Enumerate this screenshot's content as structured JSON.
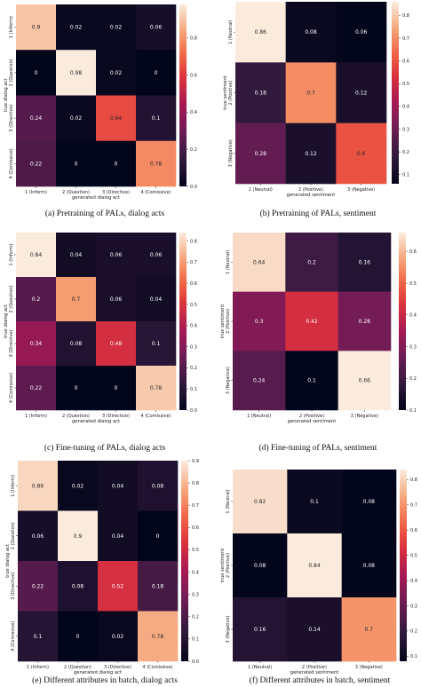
{
  "chart_data": [
    {
      "type": "heatmap",
      "caption": "(a) Pretraining of PALs, dialog acts",
      "xlabel": "generated dialog act",
      "ylabel": "true dialog act",
      "x_categories": [
        "1 (Inform)",
        "2 (Question)",
        "3 (Directive)",
        "4 (Comissive)"
      ],
      "y_categories": [
        "1 (Inform)",
        "2 (Question)",
        "3 (Directive)",
        "4 (Comissive)"
      ],
      "values": [
        [
          0.9,
          0.02,
          0.02,
          0.06
        ],
        [
          0,
          0.98,
          0.02,
          0
        ],
        [
          0.24,
          0.02,
          0.64,
          0.1
        ],
        [
          0.22,
          0,
          0,
          0.78
        ]
      ],
      "colorbar_ticks": [
        "0.0",
        "0.2",
        "0.4",
        "0.6",
        "0.8"
      ],
      "vmin": 0,
      "vmax": 0.98
    },
    {
      "type": "heatmap",
      "caption": "(b) Pretraining of PALs, sentiment",
      "xlabel": "generated sentiment",
      "ylabel": "true sentiment",
      "x_categories": [
        "1 (Neutral)",
        "2 (Positive)",
        "3 (Negative)"
      ],
      "y_categories": [
        "1 (Neutral)",
        "2 (Positive)",
        "3 (Negative)"
      ],
      "values": [
        [
          0.86,
          0.08,
          0.06
        ],
        [
          0.18,
          0.7,
          0.12
        ],
        [
          0.28,
          0.12,
          0.6
        ]
      ],
      "colorbar_ticks": [
        "0.1",
        "0.2",
        "0.3",
        "0.4",
        "0.5",
        "0.6",
        "0.7",
        "0.8"
      ],
      "vmin": 0.06,
      "vmax": 0.86
    },
    {
      "type": "heatmap",
      "caption": "(c) Fine-tuning of PALs, dialog acts",
      "xlabel": "generated dialog act",
      "ylabel": "true dialog act",
      "x_categories": [
        "1 (Inform)",
        "2 (Question)",
        "3 (Directive)",
        "4 (Comissive)"
      ],
      "y_categories": [
        "1 (Inform)",
        "2 (Question)",
        "3 (Directive)",
        "4 (Comissive)"
      ],
      "values": [
        [
          0.84,
          0.04,
          0.06,
          0.06
        ],
        [
          0.2,
          0.7,
          0.06,
          0.04
        ],
        [
          0.34,
          0.08,
          0.48,
          0.1
        ],
        [
          0.22,
          0,
          0,
          0.78
        ]
      ],
      "colorbar_ticks": [
        "0.0",
        "0.1",
        "0.2",
        "0.3",
        "0.4",
        "0.5",
        "0.6",
        "0.7",
        "0.8"
      ],
      "vmin": 0,
      "vmax": 0.84
    },
    {
      "type": "heatmap",
      "caption": "(d) Fine-tuning of PALs, sentiment",
      "xlabel": "generated sentiment",
      "ylabel": "true sentiment",
      "x_categories": [
        "1 (Neutral)",
        "2 (Positive)",
        "3 (Negative)"
      ],
      "y_categories": [
        "1 (Neutral)",
        "2 (Positive)",
        "3 (Negative)"
      ],
      "values": [
        [
          0.64,
          0.2,
          0.16
        ],
        [
          0.3,
          0.42,
          0.28
        ],
        [
          0.24,
          0.1,
          0.66
        ]
      ],
      "colorbar_ticks": [
        "0.1",
        "0.2",
        "0.3",
        "0.4",
        "0.5",
        "0.6"
      ],
      "vmin": 0.1,
      "vmax": 0.66
    },
    {
      "type": "heatmap",
      "caption": "(e) Different attributes in batch, dialog acts",
      "xlabel": "generated dialog act",
      "ylabel": "true dialog act",
      "x_categories": [
        "1 (Inform)",
        "2 (Question)",
        "3 (Directive)",
        "4 (Comissive)"
      ],
      "y_categories": [
        "1 (Inform)",
        "2 (Question)",
        "3 (Directive)",
        "4 (Comissive)"
      ],
      "values": [
        [
          0.86,
          0.02,
          0.04,
          0.08
        ],
        [
          0.06,
          0.9,
          0.04,
          0
        ],
        [
          0.22,
          0.08,
          0.52,
          0.18
        ],
        [
          0.1,
          0,
          0.02,
          0.78
        ]
      ],
      "colorbar_ticks": [
        "0.0",
        "0.1",
        "0.2",
        "0.3",
        "0.4",
        "0.5",
        "0.6",
        "0.7",
        "0.8",
        "0.9"
      ],
      "vmin": 0,
      "vmax": 0.9
    },
    {
      "type": "heatmap",
      "caption": "(f) Different attributes in batch, sentiment",
      "xlabel": "generated sentiment",
      "ylabel": "true sentiment",
      "x_categories": [
        "1 (Neutral)",
        "2 (Positive)",
        "3 (Negative)"
      ],
      "y_categories": [
        "1 (Neutral)",
        "2 (Positive)",
        "3 (Negative)"
      ],
      "values": [
        [
          0.82,
          0.1,
          0.08
        ],
        [
          0.08,
          0.84,
          0.08
        ],
        [
          0.16,
          0.14,
          0.7
        ]
      ],
      "colorbar_ticks": [
        "0.1",
        "0.2",
        "0.3",
        "0.4",
        "0.5",
        "0.6",
        "0.7",
        "0.8"
      ],
      "vmin": 0.08,
      "vmax": 0.84
    }
  ]
}
